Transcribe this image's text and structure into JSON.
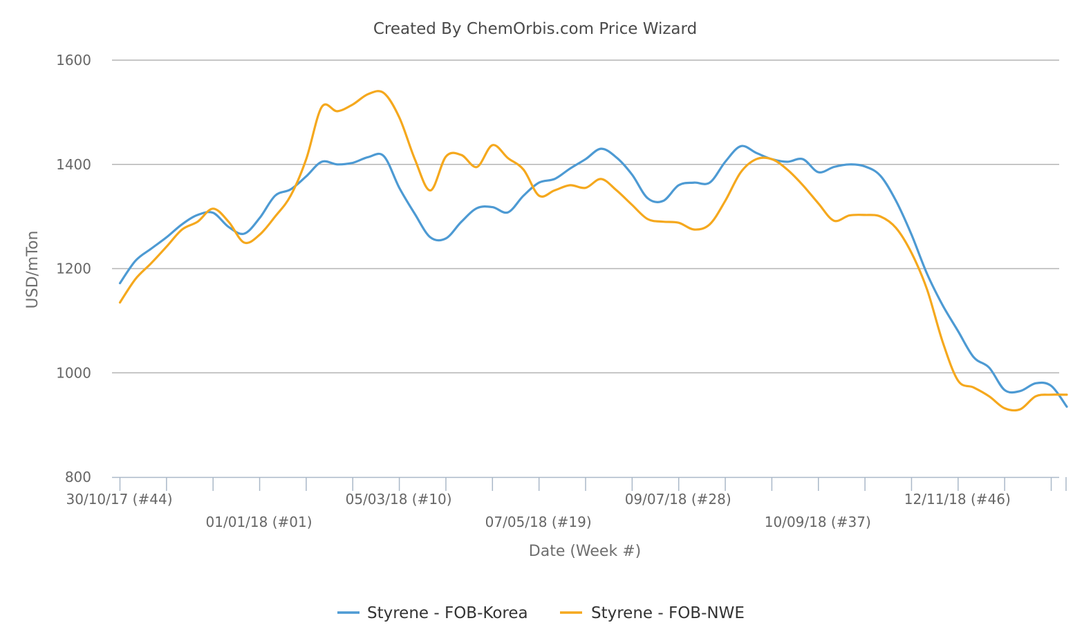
{
  "chart_data": {
    "type": "line",
    "title": "Created By ChemOrbis.com Price Wizard",
    "xlabel": "Date (Week #)",
    "ylabel": "USD/mTon",
    "ylim": [
      800,
      1600
    ],
    "yticks": [
      800,
      1000,
      1200,
      1400,
      1600
    ],
    "grid": true,
    "legend_position": "bottom",
    "x_tick_labels": [
      {
        "week_index": 0,
        "label": "30/10/17 (#44)",
        "row": 0
      },
      {
        "week_index": 9,
        "label": "01/01/18 (#01)",
        "row": 1
      },
      {
        "week_index": 18,
        "label": "05/03/18 (#10)",
        "row": 0
      },
      {
        "week_index": 27,
        "label": "07/05/18 (#19)",
        "row": 1
      },
      {
        "week_index": 36,
        "label": "09/07/18 (#28)",
        "row": 0
      },
      {
        "week_index": 45,
        "label": "10/09/18 (#37)",
        "row": 1
      },
      {
        "week_index": 54,
        "label": "12/11/18 (#46)",
        "row": 0
      }
    ],
    "series": [
      {
        "name": "Styrene - FOB-Korea",
        "color": "#4d9ad3",
        "values": [
          1172,
          1215,
          1238,
          1260,
          1285,
          1303,
          1307,
          1280,
          1267,
          1297,
          1340,
          1352,
          1377,
          1405,
          1400,
          1403,
          1414,
          1416,
          1355,
          1305,
          1260,
          1258,
          1290,
          1316,
          1318,
          1308,
          1340,
          1365,
          1372,
          1392,
          1410,
          1430,
          1413,
          1380,
          1335,
          1330,
          1360,
          1365,
          1365,
          1405,
          1435,
          1422,
          1410,
          1405,
          1410,
          1385,
          1395,
          1400,
          1396,
          1378,
          1330,
          1265,
          1190,
          1130,
          1080,
          1030,
          1010,
          967,
          965,
          980,
          975,
          935
        ]
      },
      {
        "name": "Styrene - FOB-NWE",
        "color": "#f5a81d",
        "values": [
          1135,
          1180,
          1210,
          1242,
          1275,
          1290,
          1315,
          1290,
          1250,
          1265,
          1300,
          1340,
          1410,
          1510,
          1502,
          1515,
          1535,
          1537,
          1490,
          1410,
          1350,
          1415,
          1418,
          1395,
          1437,
          1412,
          1390,
          1340,
          1350,
          1360,
          1355,
          1372,
          1350,
          1322,
          1295,
          1290,
          1288,
          1275,
          1285,
          1330,
          1385,
          1410,
          1410,
          1390,
          1360,
          1325,
          1292,
          1302,
          1303,
          1300,
          1278,
          1230,
          1160,
          1060,
          985,
          972,
          955,
          932,
          930,
          955,
          958,
          958
        ]
      }
    ]
  }
}
